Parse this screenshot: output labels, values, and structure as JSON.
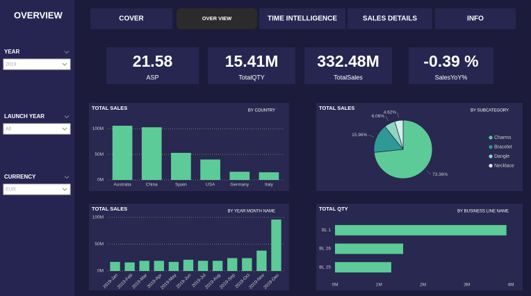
{
  "sidebar": {
    "title": "OVERVIEW",
    "filters": [
      {
        "label": "YEAR",
        "value": "2019"
      },
      {
        "label": "LAUNCH YEAR",
        "value": "All"
      },
      {
        "label": "CURRENCY",
        "value": "EUR"
      }
    ]
  },
  "tabs": [
    "COVER",
    "OVER VIEW",
    "TIME INTELLIGENCE",
    "SALES DETAILS",
    "INFO"
  ],
  "active_tab": 1,
  "kpis": [
    {
      "value": "21.58",
      "label": "ASP"
    },
    {
      "value": "15.41M",
      "label": "TotalQTY"
    },
    {
      "value": "332.48M",
      "label": "TotalSales"
    },
    {
      "value": "-0.39 %",
      "label": "SalesYoY%"
    }
  ],
  "chart_data": [
    {
      "type": "bar",
      "title": "TOTAL SALES",
      "subtitle": "BY COUNTRY",
      "categories": [
        "Australia",
        "China",
        "Spain",
        "USA",
        "Germany",
        "Italy"
      ],
      "values": [
        106,
        103,
        53,
        40,
        16,
        15
      ],
      "color": "#5ccb97",
      "ylim": [
        0,
        110
      ],
      "yticks": [
        {
          "value": 0,
          "label": "0M"
        },
        {
          "value": 50,
          "label": "50M"
        },
        {
          "value": 100,
          "label": "100M"
        }
      ],
      "grid": true
    },
    {
      "type": "pie",
      "title": "TOTAL SALES",
      "subtitle": "BY SUBCATEGORY",
      "categories": [
        "Charms",
        "Bracelet",
        "Dangle",
        "Necklace"
      ],
      "values": [
        73.36,
        15.96,
        6.06,
        4.62
      ],
      "value_labels": [
        "73.36%",
        "15.96%",
        "6.06%",
        "4.62%"
      ],
      "colors": [
        "#5ccb97",
        "#2f9a95",
        "#8fd6c2",
        "#d2f1e7"
      ]
    },
    {
      "type": "bar",
      "title": "TOTAL SALES",
      "subtitle": "BY YEAR MONTH NAME",
      "categories": [
        "2019-Jan",
        "2019-Feb",
        "2019-Mar",
        "2019-Apr",
        "2019-May",
        "2019-Jun",
        "2019-Jul",
        "2019-Aug",
        "2019-Sep",
        "2019-Oct",
        "2019-Nov",
        "2019-Dec"
      ],
      "values": [
        17,
        16,
        19,
        19,
        17,
        21,
        19,
        19,
        24,
        24,
        38,
        96
      ],
      "color": "#5ccb97",
      "ylim": [
        0,
        105
      ],
      "yticks": [
        {
          "value": 0,
          "label": "0M"
        },
        {
          "value": 50,
          "label": "50M"
        },
        {
          "value": 100,
          "label": "100M"
        }
      ],
      "grid": true
    },
    {
      "type": "bar",
      "horizontal": true,
      "title": "TOTAL QTY",
      "subtitle": "BY BUSINESS LINE NAME",
      "categories": [
        "BL 1",
        "BL 26",
        "BL 25"
      ],
      "values": [
        3.9,
        1.55,
        1.28
      ],
      "color": "#5ccb97",
      "xlim": [
        0,
        4
      ],
      "xticks": [
        {
          "value": 0,
          "label": "0M"
        },
        {
          "value": 1,
          "label": "1M"
        },
        {
          "value": 2,
          "label": "2M"
        },
        {
          "value": 3,
          "label": "3M"
        },
        {
          "value": 4,
          "label": "4M"
        }
      ],
      "grid": false
    }
  ]
}
